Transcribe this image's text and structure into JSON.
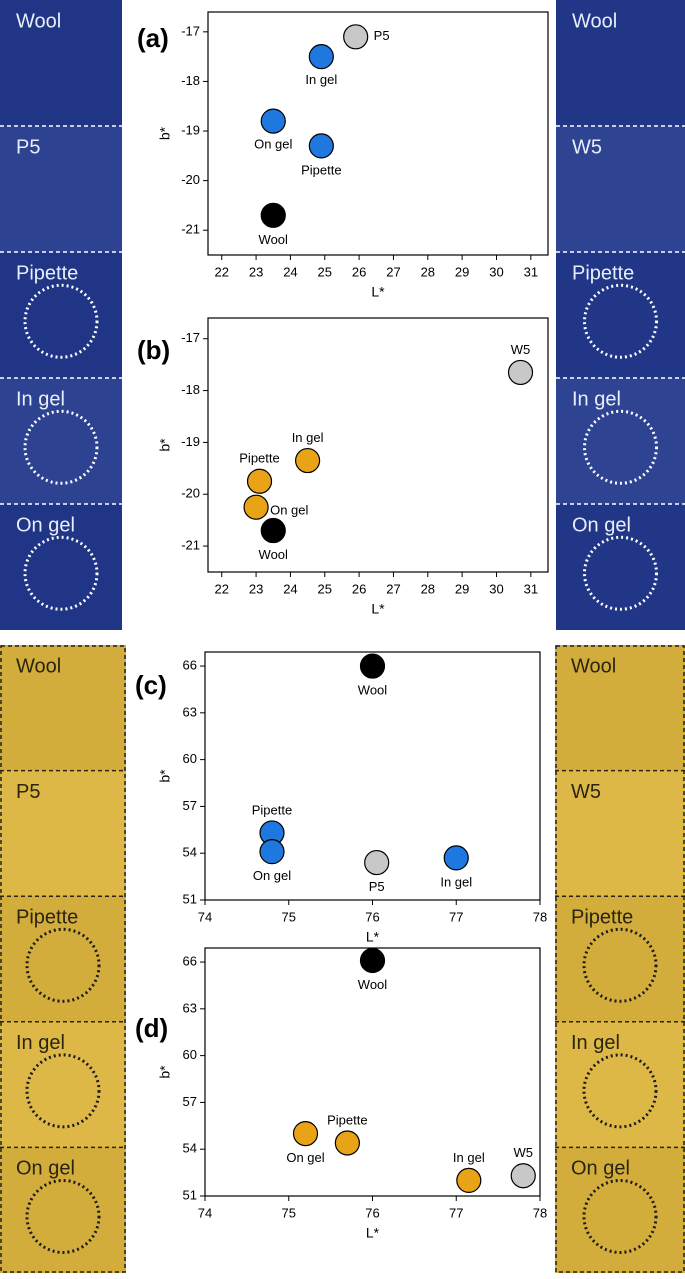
{
  "chart_data": [
    {
      "type": "scatter",
      "panel": "(a)",
      "xlabel": "L*",
      "ylabel": "b*",
      "xlim": [
        21.6,
        31.5
      ],
      "ylim": [
        -21.5,
        -16.6
      ],
      "xticks": [
        22,
        23,
        24,
        25,
        26,
        27,
        28,
        29,
        30,
        31
      ],
      "yticks": [
        -21,
        -20,
        -19,
        -18,
        -17
      ],
      "series": [
        {
          "name": "P5",
          "color": "#c8c8c8",
          "x": [
            25.9
          ],
          "values": [
            -17.1
          ]
        },
        {
          "name": "In gel",
          "color": "#1f78e0",
          "x": [
            24.9
          ],
          "values": [
            -17.5
          ]
        },
        {
          "name": "On gel",
          "color": "#1f78e0",
          "x": [
            23.5
          ],
          "values": [
            -18.8
          ]
        },
        {
          "name": "Pipette",
          "color": "#1f78e0",
          "x": [
            24.9
          ],
          "values": [
            -19.3
          ]
        },
        {
          "name": "Wool",
          "color": "#000000",
          "x": [
            23.5
          ],
          "values": [
            -20.7
          ]
        }
      ]
    },
    {
      "type": "scatter",
      "panel": "(b)",
      "xlabel": "L*",
      "ylabel": "b*",
      "xlim": [
        21.6,
        31.5
      ],
      "ylim": [
        -21.5,
        -16.6
      ],
      "xticks": [
        22,
        23,
        24,
        25,
        26,
        27,
        28,
        29,
        30,
        31
      ],
      "yticks": [
        -21,
        -20,
        -19,
        -18,
        -17
      ],
      "series": [
        {
          "name": "W5",
          "color": "#c8c8c8",
          "x": [
            30.7
          ],
          "values": [
            -17.65
          ]
        },
        {
          "name": "In gel",
          "color": "#e8a317",
          "x": [
            24.5
          ],
          "values": [
            -19.35
          ]
        },
        {
          "name": "Pipette",
          "color": "#e8a317",
          "x": [
            23.1
          ],
          "values": [
            -19.75
          ]
        },
        {
          "name": "On gel",
          "color": "#e8a317",
          "x": [
            23.0
          ],
          "values": [
            -20.25
          ]
        },
        {
          "name": "Wool",
          "color": "#000000",
          "x": [
            23.5
          ],
          "values": [
            -20.7
          ]
        }
      ]
    },
    {
      "type": "scatter",
      "panel": "(c)",
      "xlabel": "L*",
      "ylabel": "b*",
      "xlim": [
        74,
        78
      ],
      "ylim": [
        51,
        66.9
      ],
      "xticks": [
        74,
        75,
        76,
        77,
        78
      ],
      "yticks": [
        51,
        54,
        57,
        60,
        63,
        66
      ],
      "series": [
        {
          "name": "Wool",
          "color": "#000000",
          "x": [
            76.0
          ],
          "values": [
            66.0
          ]
        },
        {
          "name": "Pipette",
          "color": "#1f78e0",
          "x": [
            74.8
          ],
          "values": [
            55.3
          ]
        },
        {
          "name": "On gel",
          "color": "#1f78e0",
          "x": [
            74.8
          ],
          "values": [
            54.1
          ]
        },
        {
          "name": "P5",
          "color": "#c8c8c8",
          "x": [
            76.05
          ],
          "values": [
            53.4
          ]
        },
        {
          "name": "In gel",
          "color": "#1f78e0",
          "x": [
            77.0
          ],
          "values": [
            53.7
          ]
        }
      ]
    },
    {
      "type": "scatter",
      "panel": "(d)",
      "xlabel": "L*",
      "ylabel": "b*",
      "xlim": [
        74,
        78
      ],
      "ylim": [
        51,
        66.9
      ],
      "xticks": [
        74,
        75,
        76,
        77,
        78
      ],
      "yticks": [
        51,
        54,
        57,
        60,
        63,
        66
      ],
      "series": [
        {
          "name": "Wool",
          "color": "#000000",
          "x": [
            76.0
          ],
          "values": [
            66.1
          ]
        },
        {
          "name": "Pipette",
          "color": "#e8a317",
          "x": [
            75.7
          ],
          "values": [
            54.4
          ]
        },
        {
          "name": "On gel",
          "color": "#e8a317",
          "x": [
            75.2
          ],
          "values": [
            55.0
          ]
        },
        {
          "name": "In gel",
          "color": "#e8a317",
          "x": [
            77.15
          ],
          "values": [
            52.0
          ]
        },
        {
          "name": "W5",
          "color": "#c8c8c8",
          "x": [
            77.8
          ],
          "values": [
            52.3
          ]
        }
      ]
    }
  ],
  "swatches": {
    "left_blue": [
      "Wool",
      "P5",
      "Pipette",
      "In gel",
      "On gel"
    ],
    "right_blue": [
      "Wool",
      "W5",
      "Pipette",
      "In gel",
      "On gel"
    ],
    "left_yellow": [
      "Wool",
      "P5",
      "Pipette",
      "In gel",
      "On gel"
    ],
    "right_yellow": [
      "Wool",
      "W5",
      "Pipette",
      "In gel",
      "On gel"
    ]
  }
}
